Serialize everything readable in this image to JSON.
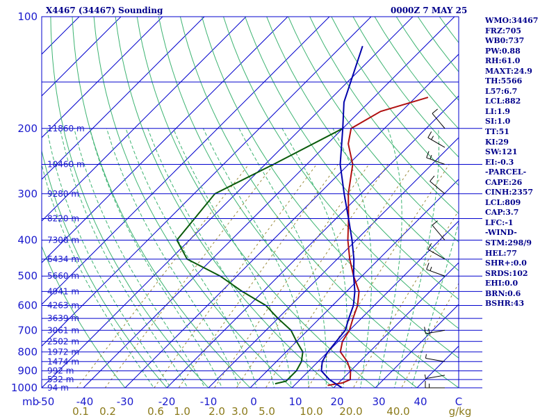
{
  "header": {
    "station_title": "X4467 (34467) Sounding",
    "valid_time": "0000Z  7 MAY 25"
  },
  "indices": [
    "WMO:34467",
    "FRZ:705",
    "WB0:737",
    "PW:0.88",
    "RH:61.0",
    "MAXT:24.9",
    "TH:5566",
    "L57:6.7",
    "LCL:882",
    "LI:1.9",
    "SI:1.0",
    "TT:51",
    "KI:29",
    "SW:121",
    "EI:-0.3",
    "-PARCEL-",
    "CAPE:26",
    "CINH:2357",
    "LCL:809",
    "CAP:3.7",
    "LFC:-1",
    "-WIND-",
    "STM:298/9",
    "HEL:77",
    "SHR+:0.0",
    "SRDS:102",
    "EHI:0.0",
    "BRN:0.6",
    "BSHR:43"
  ],
  "colors": {
    "isobar": "#0000cd",
    "isotherm": "#0000cd",
    "dry_adiabat": "#3cb371",
    "moist_adiabat": "#3cb371",
    "mixing_ratio": "#9a8a3a",
    "temperature": "#b01010",
    "dewpoint": "#0a5a0a",
    "parcel": "#0000aa",
    "wind": "#000000",
    "text": "#1a1acd",
    "header_text": "#00008b"
  },
  "chart_data": {
    "type": "line",
    "diagram": "skew-T log-p",
    "y_axis": {
      "scale": "log",
      "ylim": [
        1000,
        100
      ],
      "unit": "mb",
      "ticks": [
        "100",
        "200",
        "300",
        "400",
        "500",
        "600",
        "700",
        "800",
        "900",
        "1000"
      ]
    },
    "x_axis": {
      "xlim": [
        -50,
        50
      ],
      "tick_labels": [
        "-50",
        "-40",
        "-30",
        "-20",
        "-10",
        "0",
        "10",
        "20",
        "30",
        "40",
        "C"
      ],
      "unit_label": "mb"
    },
    "mixing_ratio_labels": [
      "0.1",
      "0.2",
      "0.6",
      "1.0",
      "2.0",
      "3.0",
      "5.0",
      "10.0",
      "20.0",
      "40.0",
      "g/kg"
    ],
    "height_labels": [
      {
        "p": 200,
        "label": "11860 m"
      },
      {
        "p": 250,
        "label": "10460 m"
      },
      {
        "p": 300,
        "label": "9280 m"
      },
      {
        "p": 350,
        "label": "8220 m"
      },
      {
        "p": 400,
        "label": "7300 m"
      },
      {
        "p": 450,
        "label": "6434 m"
      },
      {
        "p": 500,
        "label": "5660 m"
      },
      {
        "p": 550,
        "label": "4941 m"
      },
      {
        "p": 600,
        "label": "4263 m"
      },
      {
        "p": 650,
        "label": "3639 m"
      },
      {
        "p": 700,
        "label": "3061 m"
      },
      {
        "p": 750,
        "label": "2502 m"
      },
      {
        "p": 800,
        "label": "1972 m"
      },
      {
        "p": 850,
        "label": "1474 m"
      },
      {
        "p": 900,
        "label": "992 m"
      },
      {
        "p": 950,
        "label": "532 m"
      },
      {
        "p": 1000,
        "label": "94 m"
      }
    ],
    "series": [
      {
        "key": "temperature",
        "x": [
          18,
          21,
          22,
          20,
          17,
          13,
          11,
          10,
          8,
          6,
          3,
          -2,
          -7,
          -12,
          -17,
          -23,
          -29,
          -35,
          -38,
          -35,
          -27
        ],
        "y": [
          985,
          970,
          950,
          900,
          850,
          800,
          750,
          700,
          650,
          600,
          550,
          500,
          450,
          400,
          350,
          300,
          250,
          220,
          200,
          180,
          165
        ]
      },
      {
        "key": "dewpoint",
        "x": [
          5,
          7,
          7,
          6,
          4,
          0,
          -4,
          -10,
          -16,
          -25,
          -34,
          -46,
          -53,
          -55,
          -48,
          -40
        ],
        "y": [
          975,
          960,
          900,
          850,
          800,
          750,
          700,
          650,
          600,
          550,
          500,
          450,
          400,
          300,
          250,
          200
        ]
      },
      {
        "key": "parcel",
        "x": [
          22,
          17,
          13,
          11,
          10,
          9,
          7,
          5,
          2,
          -2,
          -6,
          -11,
          -17,
          -24,
          -32,
          -40,
          -46,
          -55
        ],
        "y": [
          1000,
          950,
          900,
          850,
          800,
          700,
          650,
          600,
          550,
          500,
          450,
          400,
          350,
          300,
          250,
          200,
          170,
          120
        ]
      }
    ],
    "wind_barbs": [
      {
        "p": 1000,
        "dir": 270,
        "spd": 15
      },
      {
        "p": 925,
        "dir": 260,
        "spd": 5
      },
      {
        "p": 850,
        "dir": 280,
        "spd": 5
      },
      {
        "p": 700,
        "dir": 260,
        "spd": 15
      },
      {
        "p": 500,
        "dir": 290,
        "spd": 15
      },
      {
        "p": 450,
        "dir": 300,
        "spd": 10
      },
      {
        "p": 400,
        "dir": 320,
        "spd": 10
      },
      {
        "p": 300,
        "dir": 310,
        "spd": 10
      },
      {
        "p": 250,
        "dir": 290,
        "spd": 15
      },
      {
        "p": 225,
        "dir": 300,
        "spd": 15
      },
      {
        "p": 200,
        "dir": 320,
        "spd": 10
      }
    ]
  }
}
